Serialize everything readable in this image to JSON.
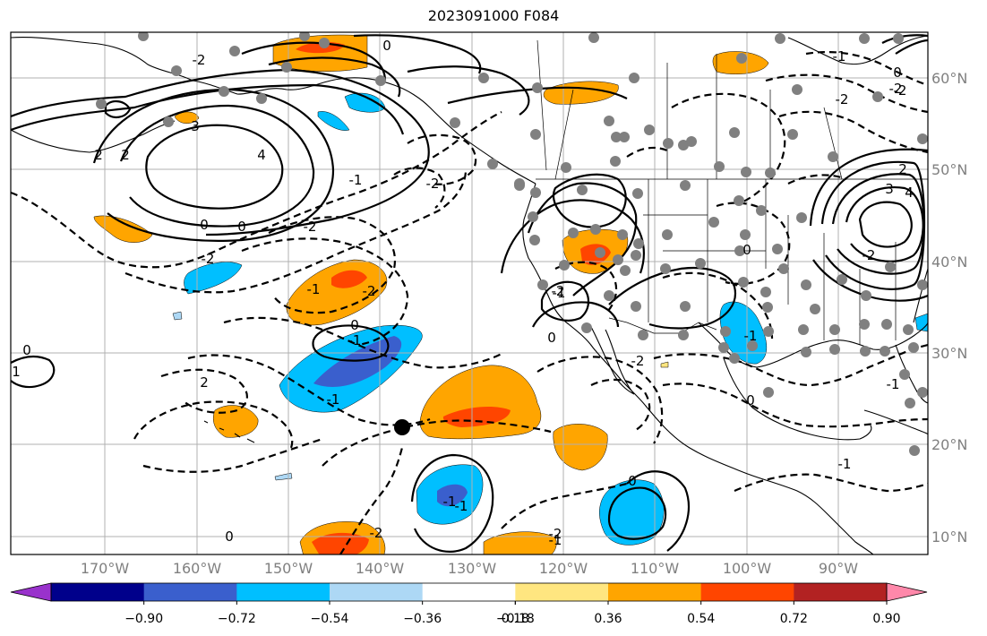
{
  "title": "2023091000 F084",
  "lon_labels": [
    "170°W",
    "160°W",
    "150°W",
    "140°W",
    "130°W",
    "120°W",
    "110°W",
    "100°W",
    "90°W"
  ],
  "lat_labels": [
    "60°N",
    "50°N",
    "40°N",
    "30°N",
    "20°N",
    "10°N"
  ],
  "colorbar": {
    "ticks": [
      "−0.90",
      "−0.72",
      "−0.54",
      "−0.36",
      "−0.18",
      "0.18",
      "0.36",
      "0.54",
      "0.72",
      "0.90"
    ],
    "colors": [
      "#9932CC",
      "#00008B",
      "#3A5FCD",
      "#00BFFF",
      "#ADD8F5",
      "#FFFFFF",
      "#FFE680",
      "#FFA500",
      "#FF4500",
      "#B22222",
      "#FF88AA"
    ]
  },
  "contour_labels": [
    "0",
    "-2",
    "3",
    "4",
    "2",
    "-2",
    "0",
    "-2",
    "-2",
    "-1",
    "-2",
    "0",
    "-1",
    "0",
    "2",
    "-1",
    "0",
    "-1",
    "-2",
    "-1",
    "0",
    "0",
    "-1",
    "-2",
    "0",
    "-2",
    "-1",
    "0",
    "0",
    "-2",
    "-1",
    "1",
    "3",
    "4",
    "2",
    "-1",
    "0",
    "2",
    "-2",
    "-1",
    "-1",
    "-2",
    "-2",
    "-1",
    "-2"
  ],
  "marker": "storm-position"
}
